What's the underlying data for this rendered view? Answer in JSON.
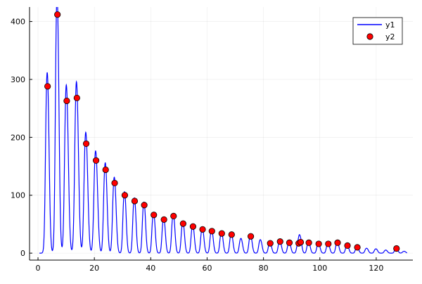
{
  "chart_data": {
    "type": "line",
    "title": "",
    "xlabel": "",
    "ylabel": "",
    "xlim": [
      -3,
      133
    ],
    "ylim": [
      -12,
      425
    ],
    "xticks": [
      0,
      20,
      40,
      60,
      80,
      100,
      120
    ],
    "yticks": [
      0,
      100,
      200,
      300,
      400
    ],
    "xtick_labels": [
      "0",
      "20",
      "40",
      "60",
      "80",
      "100",
      "120"
    ],
    "ytick_labels": [
      "0",
      "100",
      "200",
      "300",
      "400"
    ],
    "grid": true,
    "legend_position": "top-right",
    "series": [
      {
        "name": "y1",
        "kind": "line",
        "color": "#0000ff",
        "peaks": [
          [
            3.4,
            288,
            0.55
          ],
          [
            6.9,
            412,
            0.55
          ],
          [
            10.2,
            263,
            0.6
          ],
          [
            13.8,
            268,
            0.6
          ],
          [
            17.1,
            189,
            0.6
          ],
          [
            20.6,
            160,
            0.6
          ],
          [
            24.0,
            144,
            0.55
          ],
          [
            27.2,
            121,
            0.55
          ],
          [
            30.8,
            100,
            0.5
          ],
          [
            34.3,
            90,
            0.5
          ],
          [
            37.7,
            83,
            0.5
          ],
          [
            41.1,
            66,
            0.5
          ],
          [
            44.7,
            58,
            0.5
          ],
          [
            48.1,
            64,
            0.5
          ],
          [
            51.5,
            51,
            0.5
          ],
          [
            55.0,
            46,
            0.5
          ],
          [
            58.4,
            41,
            0.5
          ],
          [
            61.7,
            38,
            0.5
          ],
          [
            65.2,
            34,
            0.5
          ],
          [
            68.7,
            32,
            0.5
          ],
          [
            72.1,
            24,
            0.5
          ],
          [
            75.5,
            29,
            0.5
          ],
          [
            79.0,
            22,
            0.5
          ],
          [
            82.4,
            17,
            0.5
          ],
          [
            85.9,
            20,
            0.5
          ],
          [
            89.2,
            18,
            0.5
          ],
          [
            92.5,
            18,
            0.5
          ],
          [
            93.2,
            19,
            0.45
          ],
          [
            96.1,
            18,
            0.5
          ],
          [
            99.6,
            16,
            0.5
          ],
          [
            103.0,
            16,
            0.5
          ],
          [
            106.3,
            18,
            0.5
          ],
          [
            109.8,
            13,
            0.5
          ],
          [
            113.3,
            10,
            0.5
          ],
          [
            116.7,
            8,
            0.5
          ],
          [
            120.0,
            7,
            0.5
          ],
          [
            123.5,
            5,
            0.5
          ],
          [
            127.2,
            8,
            0.5
          ],
          [
            130.0,
            3,
            0.5
          ]
        ]
      },
      {
        "name": "y2",
        "kind": "scatter",
        "color": "#ff0000",
        "x": [
          3.4,
          6.9,
          10.2,
          13.8,
          17.1,
          20.6,
          24.0,
          27.2,
          30.8,
          34.3,
          37.7,
          41.1,
          44.7,
          48.1,
          51.5,
          55.0,
          58.4,
          61.7,
          65.2,
          68.7,
          75.5,
          82.4,
          85.9,
          89.2,
          92.5,
          93.2,
          96.1,
          99.6,
          103.0,
          106.3,
          109.8,
          113.3,
          127.2
        ],
        "y": [
          288,
          412,
          263,
          268,
          189,
          160,
          144,
          121,
          100,
          90,
          83,
          66,
          58,
          64,
          51,
          46,
          41,
          38,
          34,
          32,
          29,
          17,
          20,
          18,
          17,
          19,
          18,
          16,
          16,
          18,
          13,
          10,
          8
        ]
      }
    ]
  }
}
